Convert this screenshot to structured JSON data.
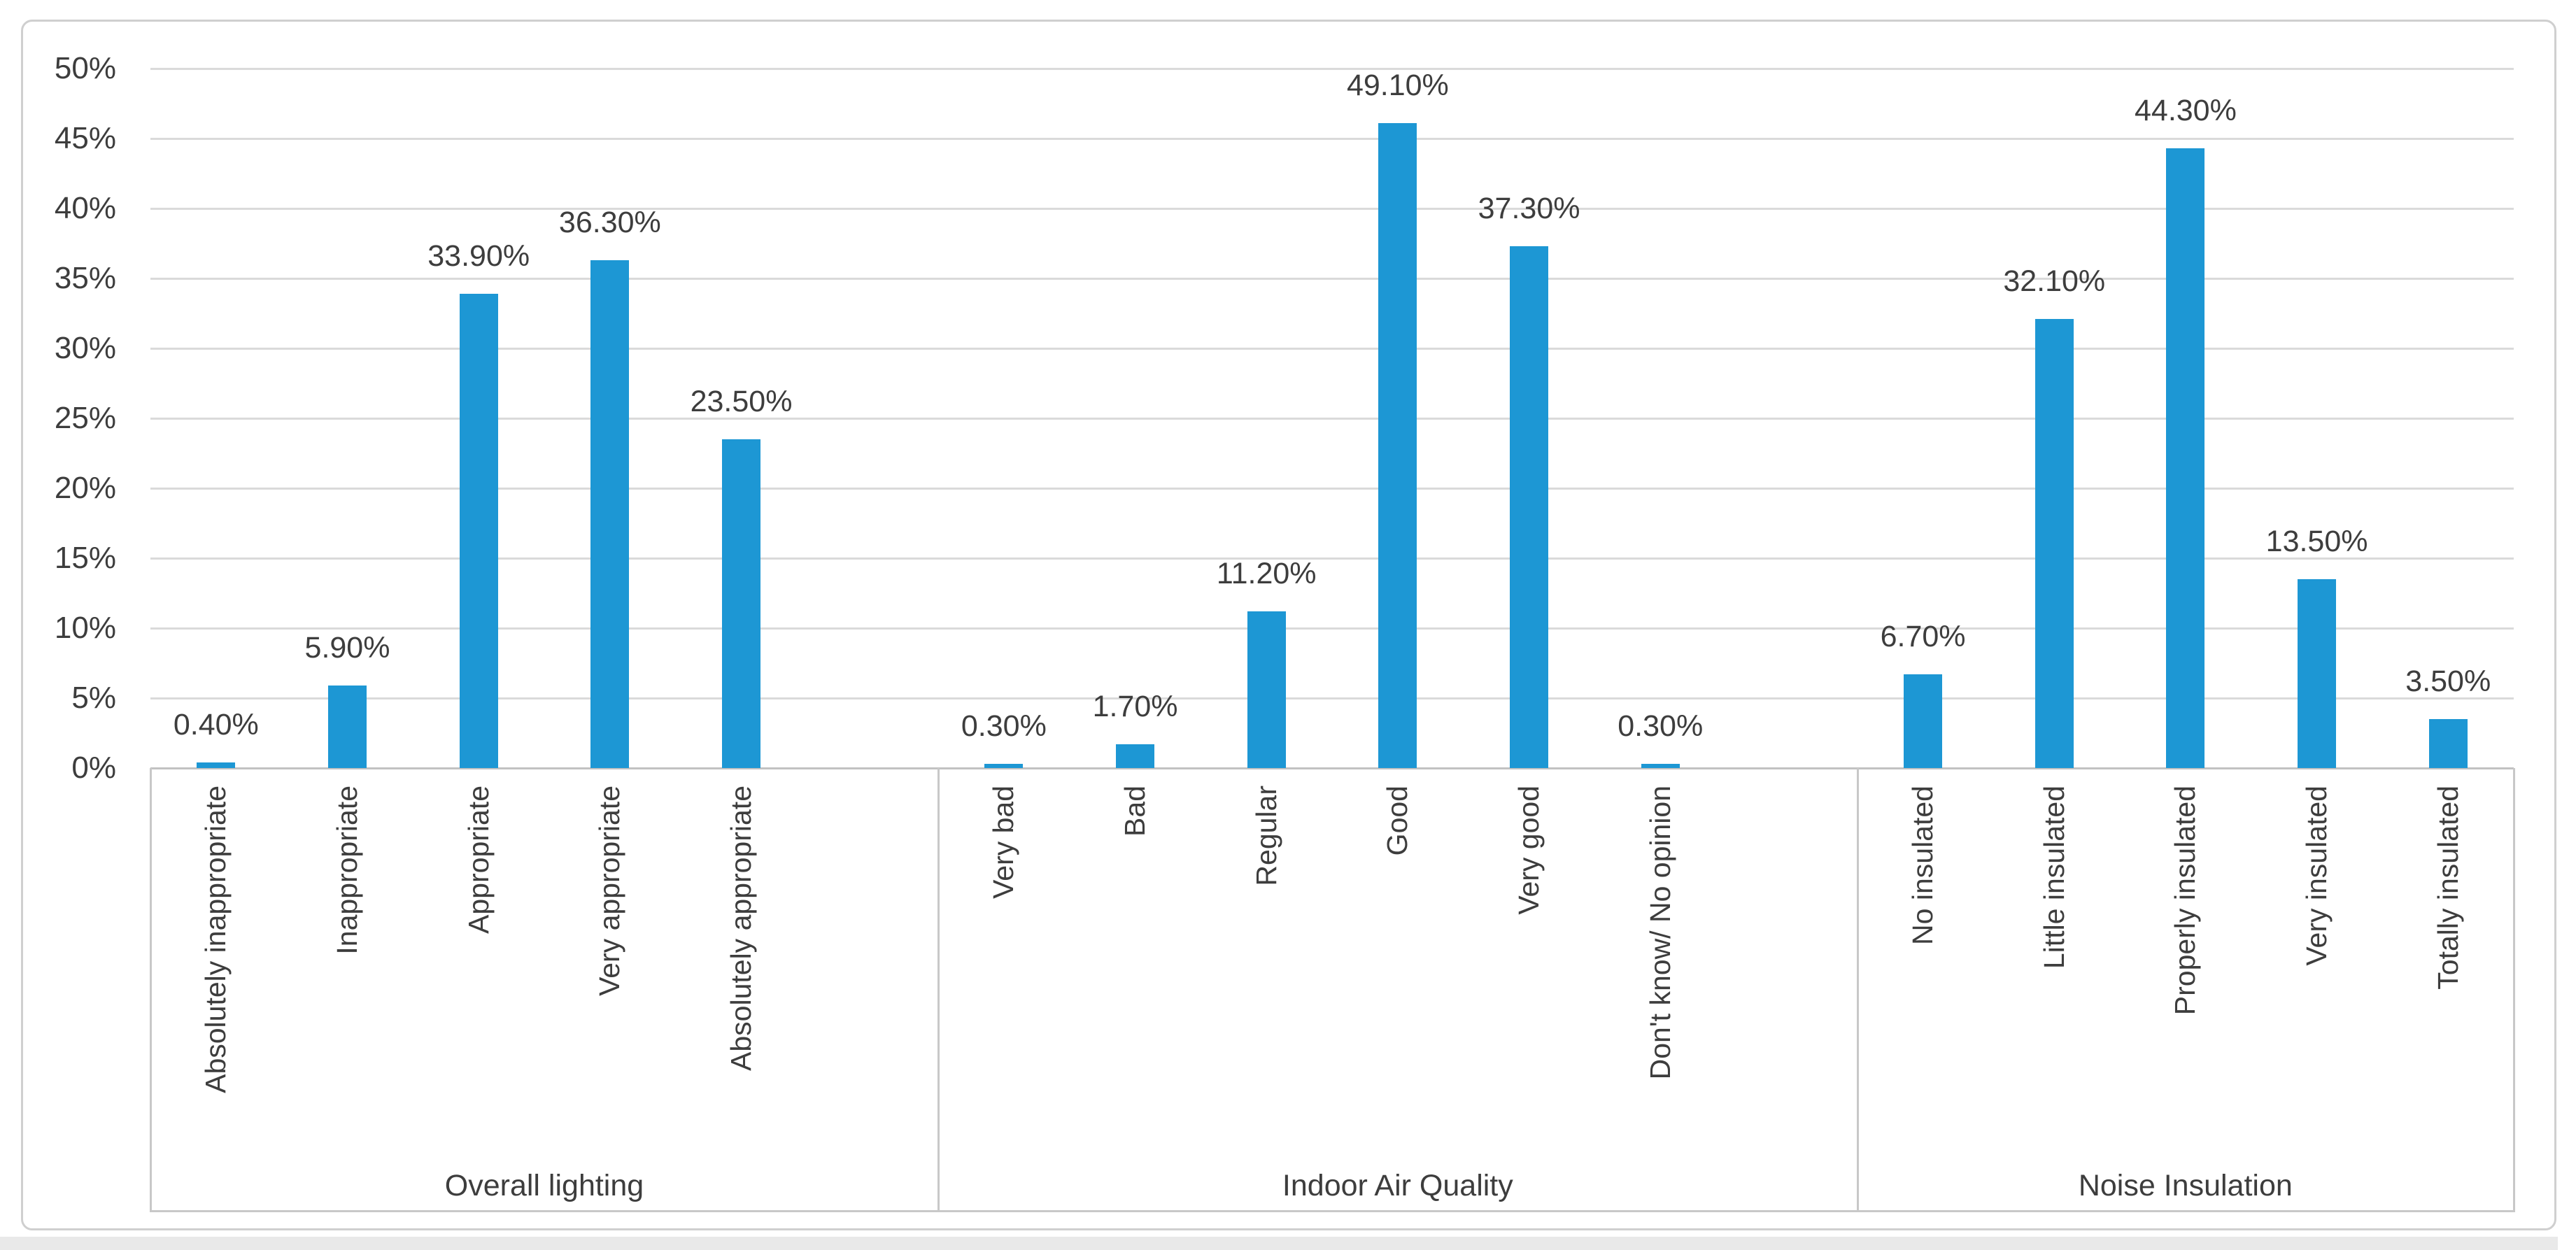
{
  "page": {
    "background_color": "#FFFFFF",
    "bottom_strip_color": "#E9E9E9",
    "card_border_color": "#CFCFCF"
  },
  "chart_data": {
    "type": "bar",
    "title": "",
    "legend": "none",
    "grid": true,
    "bar_color": "#1D97D4",
    "text_color": "#3D3D3D",
    "gridline_color": "#DADADA",
    "value_axis": {
      "min": 0,
      "max": 50,
      "step": 5,
      "tick_labels": [
        "0%",
        "5%",
        "10%",
        "15%",
        "20%",
        "25%",
        "30%",
        "35%",
        "40%",
        "45%",
        "50%"
      ]
    },
    "groups": [
      {
        "label": "Overall lighting",
        "categories": [
          "Absolutely inappropriate",
          "Inappropriate",
          "Appropriate",
          "Very appropriate",
          "Absolutely appropriate"
        ],
        "values": [
          0.4,
          5.9,
          33.9,
          36.3,
          23.5
        ],
        "data_labels": [
          "0.40%",
          "5.90%",
          "33.90%",
          "36.30%",
          "23.50%"
        ]
      },
      {
        "label": "Indoor Air Quality",
        "categories": [
          "Very bad",
          "Bad",
          "Regular",
          "Good",
          "Very good",
          "Don't know/ No opinion"
        ],
        "values": [
          0.3,
          1.7,
          11.2,
          49.1,
          37.3,
          0.3
        ],
        "data_labels": [
          "0.30%",
          "1.70%",
          "11.20%",
          "49.10%",
          "37.30%",
          "0.30%"
        ]
      },
      {
        "label": "Noise Insulation",
        "categories": [
          "No insulated",
          "Little insulated",
          "Properly insulated",
          "Very insulated",
          "Totally insulated"
        ],
        "values": [
          6.7,
          32.1,
          44.3,
          13.5,
          3.5
        ],
        "data_labels": [
          "6.70%",
          "32.10%",
          "44.30%",
          "13.50%",
          "3.50%"
        ]
      }
    ],
    "layout_hints": {
      "slots_total": 18,
      "blank_slots_after_groups": [
        0,
        1
      ],
      "group_slot_spans": [
        6,
        7,
        5
      ]
    }
  }
}
